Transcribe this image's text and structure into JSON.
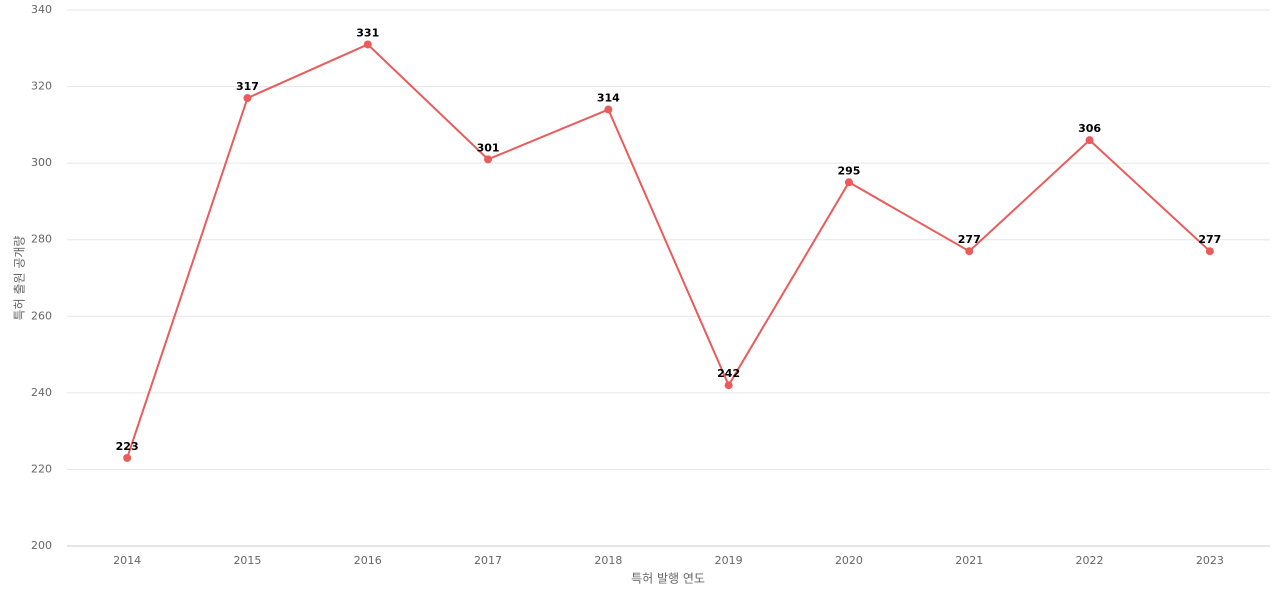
{
  "chart_data": {
    "type": "line",
    "x_label": "특허 발행 연도",
    "y_label": "특허 출원 공개량",
    "categories": [
      "2014",
      "2015",
      "2016",
      "2017",
      "2018",
      "2019",
      "2020",
      "2021",
      "2022",
      "2023"
    ],
    "values": [
      223,
      317,
      331,
      301,
      314,
      242,
      295,
      277,
      306,
      277
    ],
    "color": "#ea5b5b",
    "ylim": [
      200,
      340
    ],
    "yticks": [
      200,
      220,
      240,
      260,
      280,
      300,
      320,
      340
    ],
    "grid": true
  }
}
